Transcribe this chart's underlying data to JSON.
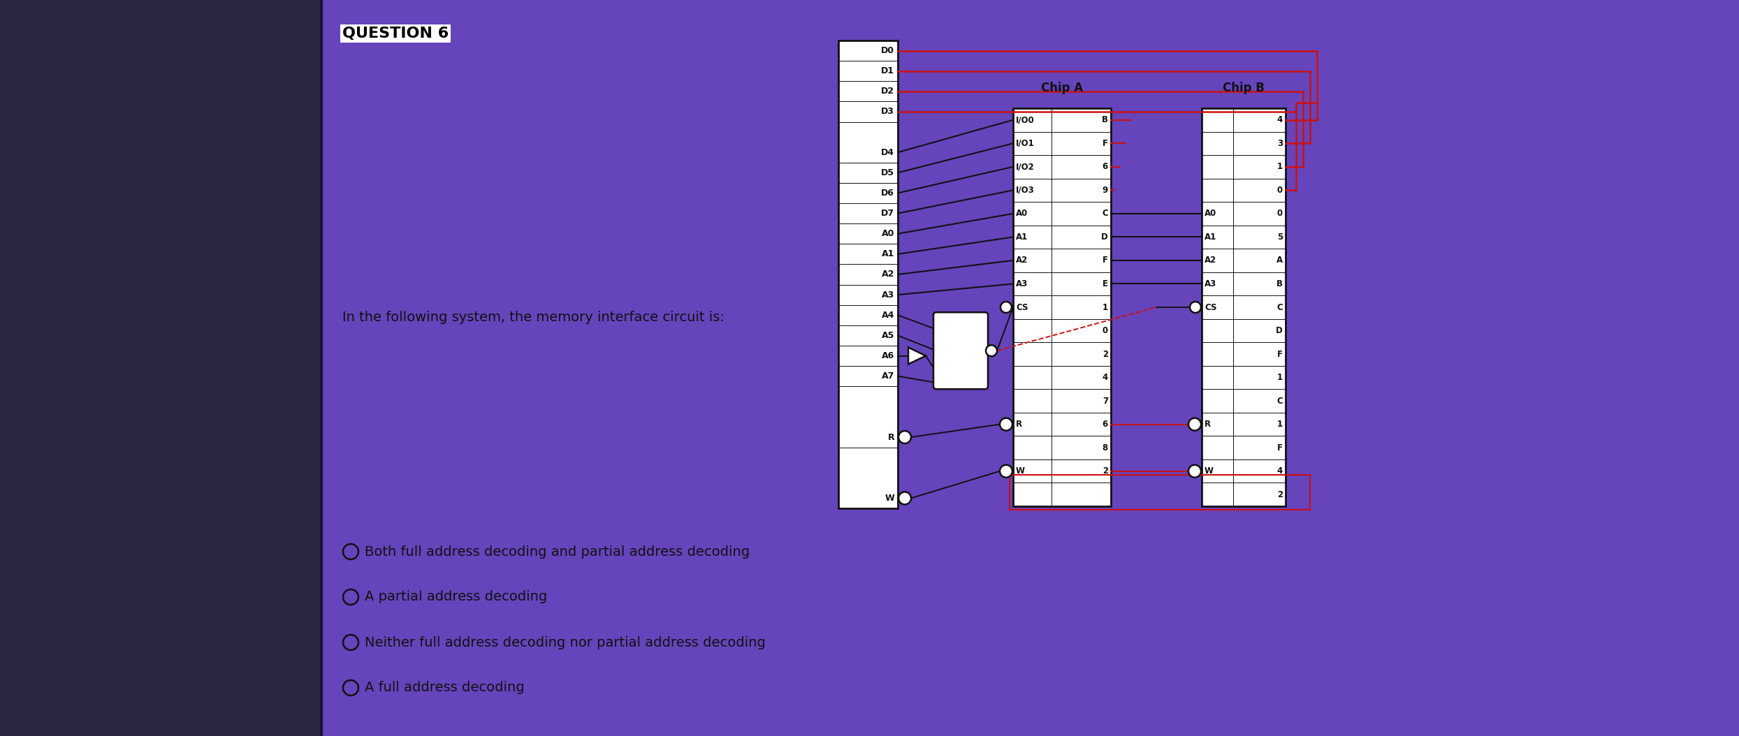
{
  "bg_left": "#2a2540",
  "bg_right": "#6644bb",
  "box_fill": "#ffffff",
  "box_edge": "#111111",
  "red": "#cc1111",
  "black": "#111111",
  "title": "QUESTION 6",
  "question": "In the following system, the memory interface circuit is:",
  "answers": [
    "Both full address decoding and partial address decoding",
    "A partial address decoding",
    "Neither full address decoding nor partial address decoding",
    "A full address decoding"
  ],
  "cpu_pins": [
    "D0",
    "D1",
    "D2",
    "D3",
    "gap",
    "D4",
    "D5",
    "D6",
    "D7",
    "A0",
    "A1",
    "A2",
    "A3",
    "A4",
    "A5",
    "A6",
    "A7",
    "gap",
    "gap",
    "R",
    "gap",
    "gap",
    "W"
  ],
  "chipA_rows_left": [
    "I/O0",
    "I/O1",
    "I/O2",
    "I/O3",
    "A0",
    "A1",
    "A2",
    "A3",
    "CS",
    "",
    "",
    "",
    "",
    "R",
    "",
    "W",
    ""
  ],
  "chipA_rows_right": [
    "B",
    "F",
    "6",
    "9",
    "C",
    "D",
    "F",
    "E",
    "1",
    "0",
    "2",
    "4",
    "7",
    "6",
    "8",
    "2",
    ""
  ],
  "chipB_rows_left": [
    "",
    "",
    "",
    "",
    "A0",
    "A1",
    "A2",
    "A3",
    "CS",
    "",
    "",
    "",
    "",
    "R",
    "",
    "W",
    ""
  ],
  "chipB_rows_right": [
    "4",
    "3",
    "1",
    "0",
    "0",
    "5",
    "A",
    "B",
    "C",
    "D",
    "F",
    "1",
    "C",
    "1",
    "F",
    "4",
    "2"
  ]
}
